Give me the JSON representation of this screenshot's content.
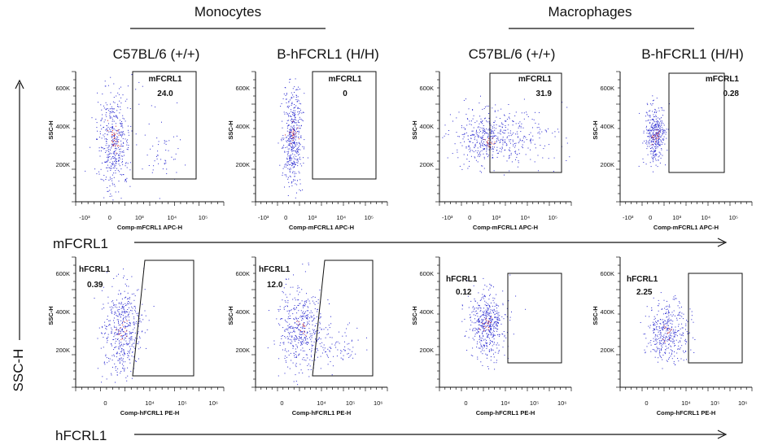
{
  "groups": [
    "Monocytes",
    "Macrophages"
  ],
  "big_labels": {
    "y_axis": "SSC-H",
    "row1_x": "mFCRL1",
    "row2_x": "hFCRL1"
  },
  "colors": {
    "dot": "#2a2ad0",
    "dot_dense": "#d02a2a",
    "frame": "#111111"
  },
  "chart_data": [
    {
      "type": "scatter",
      "group": "Monocytes",
      "title": "C57BL/6 (+/+)",
      "xlabel": "Comp-mFCRL1 APC-H",
      "ylabel": "SSC-H",
      "x_ticks": [
        "-10³",
        "0",
        "10³",
        "10⁴",
        "10⁵"
      ],
      "y_ticks": [
        "200K",
        "400K",
        "600K"
      ],
      "gate": {
        "name": "mFCRL1",
        "value": "24.0"
      }
    },
    {
      "type": "scatter",
      "group": "Monocytes",
      "title": "B-hFCRL1 (H/H)",
      "xlabel": "Comp-mFCRL1 APC-H",
      "ylabel": "SSC-H",
      "x_ticks": [
        "-10³",
        "0",
        "10³",
        "10⁴",
        "10⁵"
      ],
      "y_ticks": [
        "200K",
        "400K",
        "600K"
      ],
      "gate": {
        "name": "mFCRL1",
        "value": "0"
      }
    },
    {
      "type": "scatter",
      "group": "Macrophages",
      "title": "C57BL/6 (+/+)",
      "xlabel": "Comp-mFCRL1 APC-H",
      "ylabel": "SSC-H",
      "x_ticks": [
        "-10³",
        "0",
        "10³",
        "10⁴",
        "10⁵"
      ],
      "y_ticks": [
        "200K",
        "400K",
        "600K"
      ],
      "gate": {
        "name": "mFCRL1",
        "value": "31.9"
      }
    },
    {
      "type": "scatter",
      "group": "Macrophages",
      "title": "B-hFCRL1 (H/H)",
      "xlabel": "Comp-mFCRL1 APC-H",
      "ylabel": "SSC-H",
      "x_ticks": [
        "-10³",
        "0",
        "10³",
        "10⁴",
        "10⁵"
      ],
      "y_ticks": [
        "200K",
        "400K",
        "600K"
      ],
      "gate": {
        "name": "mFCRL1",
        "value": "0.28"
      }
    },
    {
      "type": "scatter",
      "group": "Monocytes",
      "title": "",
      "xlabel": "Comp-hFCRL1 PE-H",
      "ylabel": "SSC-H",
      "x_ticks": [
        "0",
        "10⁴",
        "10⁵",
        "10⁶"
      ],
      "y_ticks": [
        "200K",
        "400K",
        "600K"
      ],
      "gate": {
        "name": "hFCRL1",
        "value": "0.39"
      }
    },
    {
      "type": "scatter",
      "group": "Monocytes",
      "title": "",
      "xlabel": "Comp-hFCRL1 PE-H",
      "ylabel": "SSC-H",
      "x_ticks": [
        "0",
        "10⁴",
        "10⁵",
        "10⁶"
      ],
      "y_ticks": [
        "200K",
        "400K",
        "600K"
      ],
      "gate": {
        "name": "hFCRL1",
        "value": "12.0"
      }
    },
    {
      "type": "scatter",
      "group": "Macrophages",
      "title": "",
      "xlabel": "Comp-hFCRL1 PE-H",
      "ylabel": "SSC-H",
      "x_ticks": [
        "0",
        "10⁴",
        "10⁵",
        "10⁶"
      ],
      "y_ticks": [
        "200K",
        "400K",
        "600K"
      ],
      "gate": {
        "name": "hFCRL1",
        "value": "0.12"
      }
    },
    {
      "type": "scatter",
      "group": "Macrophages",
      "title": "",
      "xlabel": "Comp-hFCRL1 PE-H",
      "ylabel": "SSC-H",
      "x_ticks": [
        "0",
        "10⁴",
        "10⁵",
        "10⁶"
      ],
      "y_ticks": [
        "200K",
        "400K",
        "600K"
      ],
      "gate": {
        "name": "hFCRL1",
        "value": "2.25"
      }
    }
  ]
}
